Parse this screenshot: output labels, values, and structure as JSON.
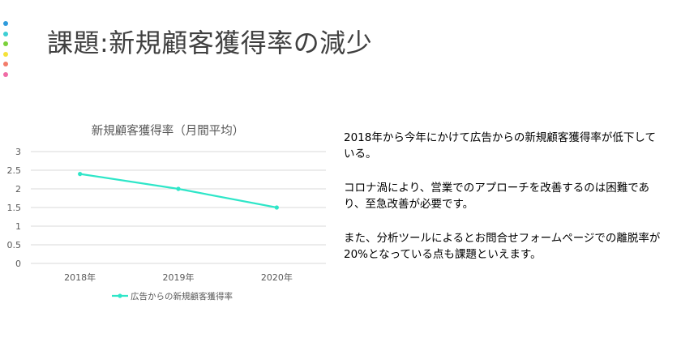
{
  "title": "課題:新規顧客獲得率の減少",
  "decor_dots": {
    "icon": "dot-icon",
    "colors": [
      "#2f9bdc",
      "#3fcfd4",
      "#7bd13b",
      "#f5e23a",
      "#f37c6a",
      "#f06ba5"
    ]
  },
  "body": {
    "paragraphs": [
      "2018年から今年にかけて広告からの新規顧客獲得率が低下している。",
      "コロナ渦により、営業でのアプローチを改善するのは困難であり、至急改善が必要です。",
      "また、分析ツールによるとお問合せフォームページでの離脱率が20%となっている点も課題といえます。"
    ]
  },
  "chart_data": {
    "type": "line",
    "title": "新規顧客獲得率（月間平均）",
    "categories": [
      "2018年",
      "2019年",
      "2020年"
    ],
    "series": [
      {
        "name": "広告からの新規顧客獲得率",
        "values": [
          2.4,
          2.0,
          1.5
        ],
        "color": "#2ee6c8"
      }
    ],
    "ylim": [
      0,
      3
    ],
    "yticks": [
      "0",
      "0.5",
      "1",
      "1.5",
      "2",
      "2.5",
      "3"
    ],
    "grid": true,
    "legend": "bottom"
  }
}
